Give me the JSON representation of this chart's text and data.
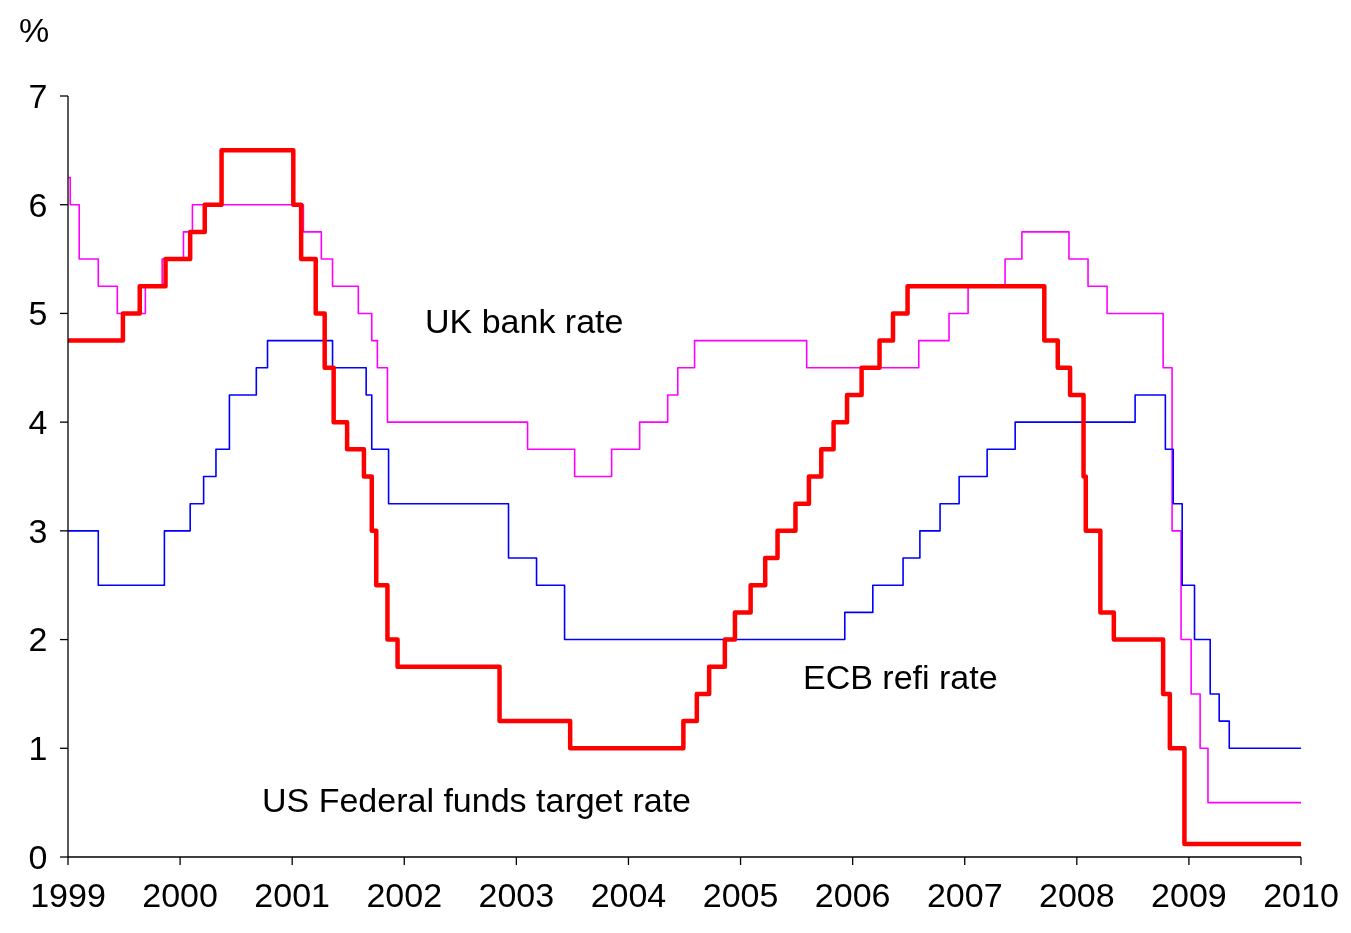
{
  "chart_data": {
    "type": "step",
    "ylabel": "%",
    "xlim": [
      1999,
      2010
    ],
    "xticks": [
      1999,
      2000,
      2001,
      2002,
      2003,
      2004,
      2005,
      2006,
      2007,
      2008,
      2009,
      2010
    ],
    "ylim": [
      0,
      7
    ],
    "yticks": [
      0,
      1,
      2,
      3,
      4,
      5,
      6,
      7
    ],
    "series": [
      {
        "name": "UK bank rate",
        "color": "#ff00ff",
        "x": [
          1999.0,
          1999.02,
          1999.1,
          1999.27,
          1999.44,
          1999.69,
          1999.84,
          2000.03,
          2000.11,
          2001.1,
          2001.26,
          2001.36,
          2001.59,
          2001.71,
          2001.76,
          2001.85,
          2003.1,
          2003.52,
          2003.85,
          2004.1,
          2004.35,
          2004.44,
          2004.59,
          2005.59,
          2006.59,
          2006.86,
          2007.03,
          2007.36,
          2007.51,
          2007.93,
          2008.1,
          2008.27,
          2008.77,
          2008.85,
          2008.93,
          2009.02,
          2009.1,
          2009.17,
          2010
        ],
        "values": [
          6.25,
          6.0,
          5.5,
          5.25,
          5.0,
          5.25,
          5.5,
          5.75,
          6.0,
          5.75,
          5.5,
          5.25,
          5.0,
          4.75,
          4.5,
          4.0,
          3.75,
          3.5,
          3.75,
          4.0,
          4.25,
          4.5,
          4.75,
          4.5,
          4.75,
          5.0,
          5.25,
          5.5,
          5.75,
          5.5,
          5.25,
          5.0,
          4.5,
          3.0,
          2.0,
          1.5,
          1.0,
          0.5,
          0.5
        ]
      },
      {
        "name": "ECB refi rate",
        "color": "#0000ff",
        "x": [
          1999.0,
          1999.27,
          1999.86,
          2000.09,
          2000.21,
          2000.32,
          2000.44,
          2000.68,
          2000.78,
          2001.36,
          2001.66,
          2001.71,
          2001.86,
          2002.93,
          2003.18,
          2003.43,
          2005.93,
          2006.18,
          2006.45,
          2006.6,
          2006.78,
          2006.95,
          2007.2,
          2007.45,
          2008.52,
          2008.79,
          2008.86,
          2008.94,
          2009.05,
          2009.19,
          2009.27,
          2009.36,
          2010
        ],
        "values": [
          3.0,
          2.5,
          3.0,
          3.25,
          3.5,
          3.75,
          4.25,
          4.5,
          4.75,
          4.5,
          4.25,
          3.75,
          3.25,
          2.75,
          2.5,
          2.0,
          2.25,
          2.5,
          2.75,
          3.0,
          3.25,
          3.5,
          3.75,
          4.0,
          4.25,
          3.75,
          3.25,
          2.5,
          2.0,
          1.5,
          1.25,
          1.0,
          1.0
        ]
      },
      {
        "name": "US Federal funds target rate",
        "color": "#ff0000",
        "x": [
          1999.0,
          1999.49,
          1999.64,
          1999.87,
          2000.09,
          2000.22,
          2000.37,
          2001.01,
          2001.08,
          2001.21,
          2001.29,
          2001.37,
          2001.49,
          2001.64,
          2001.71,
          2001.75,
          2001.85,
          2001.94,
          2002.85,
          2003.48,
          2004.49,
          2004.61,
          2004.72,
          2004.86,
          2004.95,
          2005.09,
          2005.22,
          2005.33,
          2005.49,
          2005.61,
          2005.72,
          2005.83,
          2005.95,
          2006.08,
          2006.24,
          2006.36,
          2006.49,
          2007.71,
          2007.83,
          2007.94,
          2008.06,
          2008.08,
          2008.21,
          2008.33,
          2008.77,
          2008.83,
          2008.96,
          2010
        ],
        "values": [
          4.75,
          5.0,
          5.25,
          5.5,
          5.75,
          6.0,
          6.5,
          6.0,
          5.5,
          5.0,
          4.5,
          4.0,
          3.75,
          3.5,
          3.0,
          2.5,
          2.0,
          1.75,
          1.25,
          1.0,
          1.25,
          1.5,
          1.75,
          2.0,
          2.25,
          2.5,
          2.75,
          3.0,
          3.25,
          3.5,
          3.75,
          4.0,
          4.25,
          4.5,
          4.75,
          5.0,
          5.25,
          4.75,
          4.5,
          4.25,
          3.5,
          3.0,
          2.25,
          2.0,
          1.5,
          1.0,
          0.12,
          0.12
        ]
      }
    ]
  }
}
